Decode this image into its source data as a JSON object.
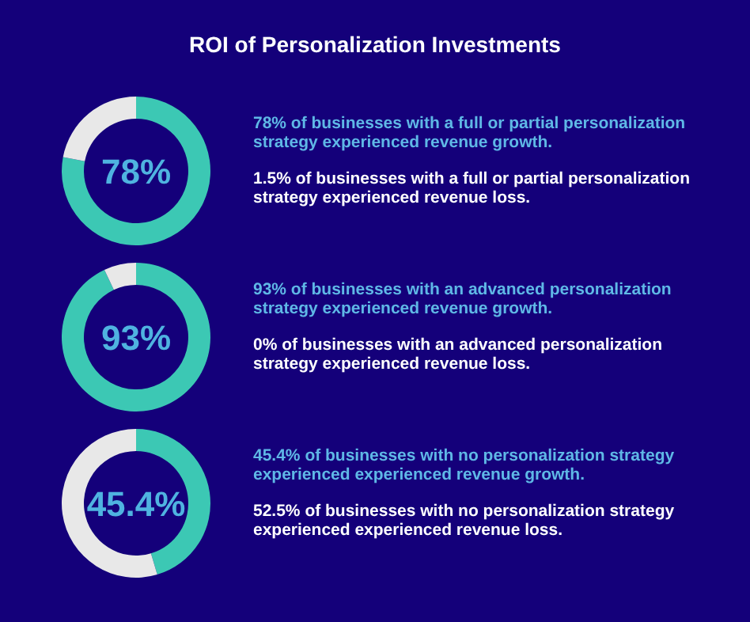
{
  "chart_data": [
    {
      "type": "donut",
      "title": "ROI of Personalization Investments",
      "categories": [
        null,
        null
      ],
      "values": [
        78,
        22
      ],
      "colors": [
        "#3cc8b4",
        "#e8e8e8"
      ],
      "value_labels": [
        "78%",
        null
      ],
      "annotations": [
        "78% of businesses with a full or partial personalization strategy experienced revenue growth.",
        "1.5% of businesses with a full or partial personalization strategy experienced revenue loss."
      ]
    },
    {
      "type": "donut",
      "categories": [
        null,
        null
      ],
      "values": [
        93,
        7
      ],
      "colors": [
        "#3cc8b4",
        "#e8e8e8"
      ],
      "value_labels": [
        "93%",
        null
      ],
      "annotations": [
        "93% of businesses with an advanced personalization strategy experienced revenue growth.",
        "0% of businesses with an advanced personalization strategy experienced revenue loss."
      ]
    },
    {
      "type": "donut",
      "categories": [
        null,
        null
      ],
      "values": [
        45.4,
        54.6
      ],
      "colors": [
        "#3cc8b4",
        "#e8e8e8"
      ],
      "value_labels": [
        "45.4%",
        null
      ],
      "annotations": [
        "45.4% of businesses with no personalization strategy experienced experienced revenue growth.",
        "52.5% of businesses with no personalization strategy experienced experienced revenue loss."
      ]
    }
  ]
}
